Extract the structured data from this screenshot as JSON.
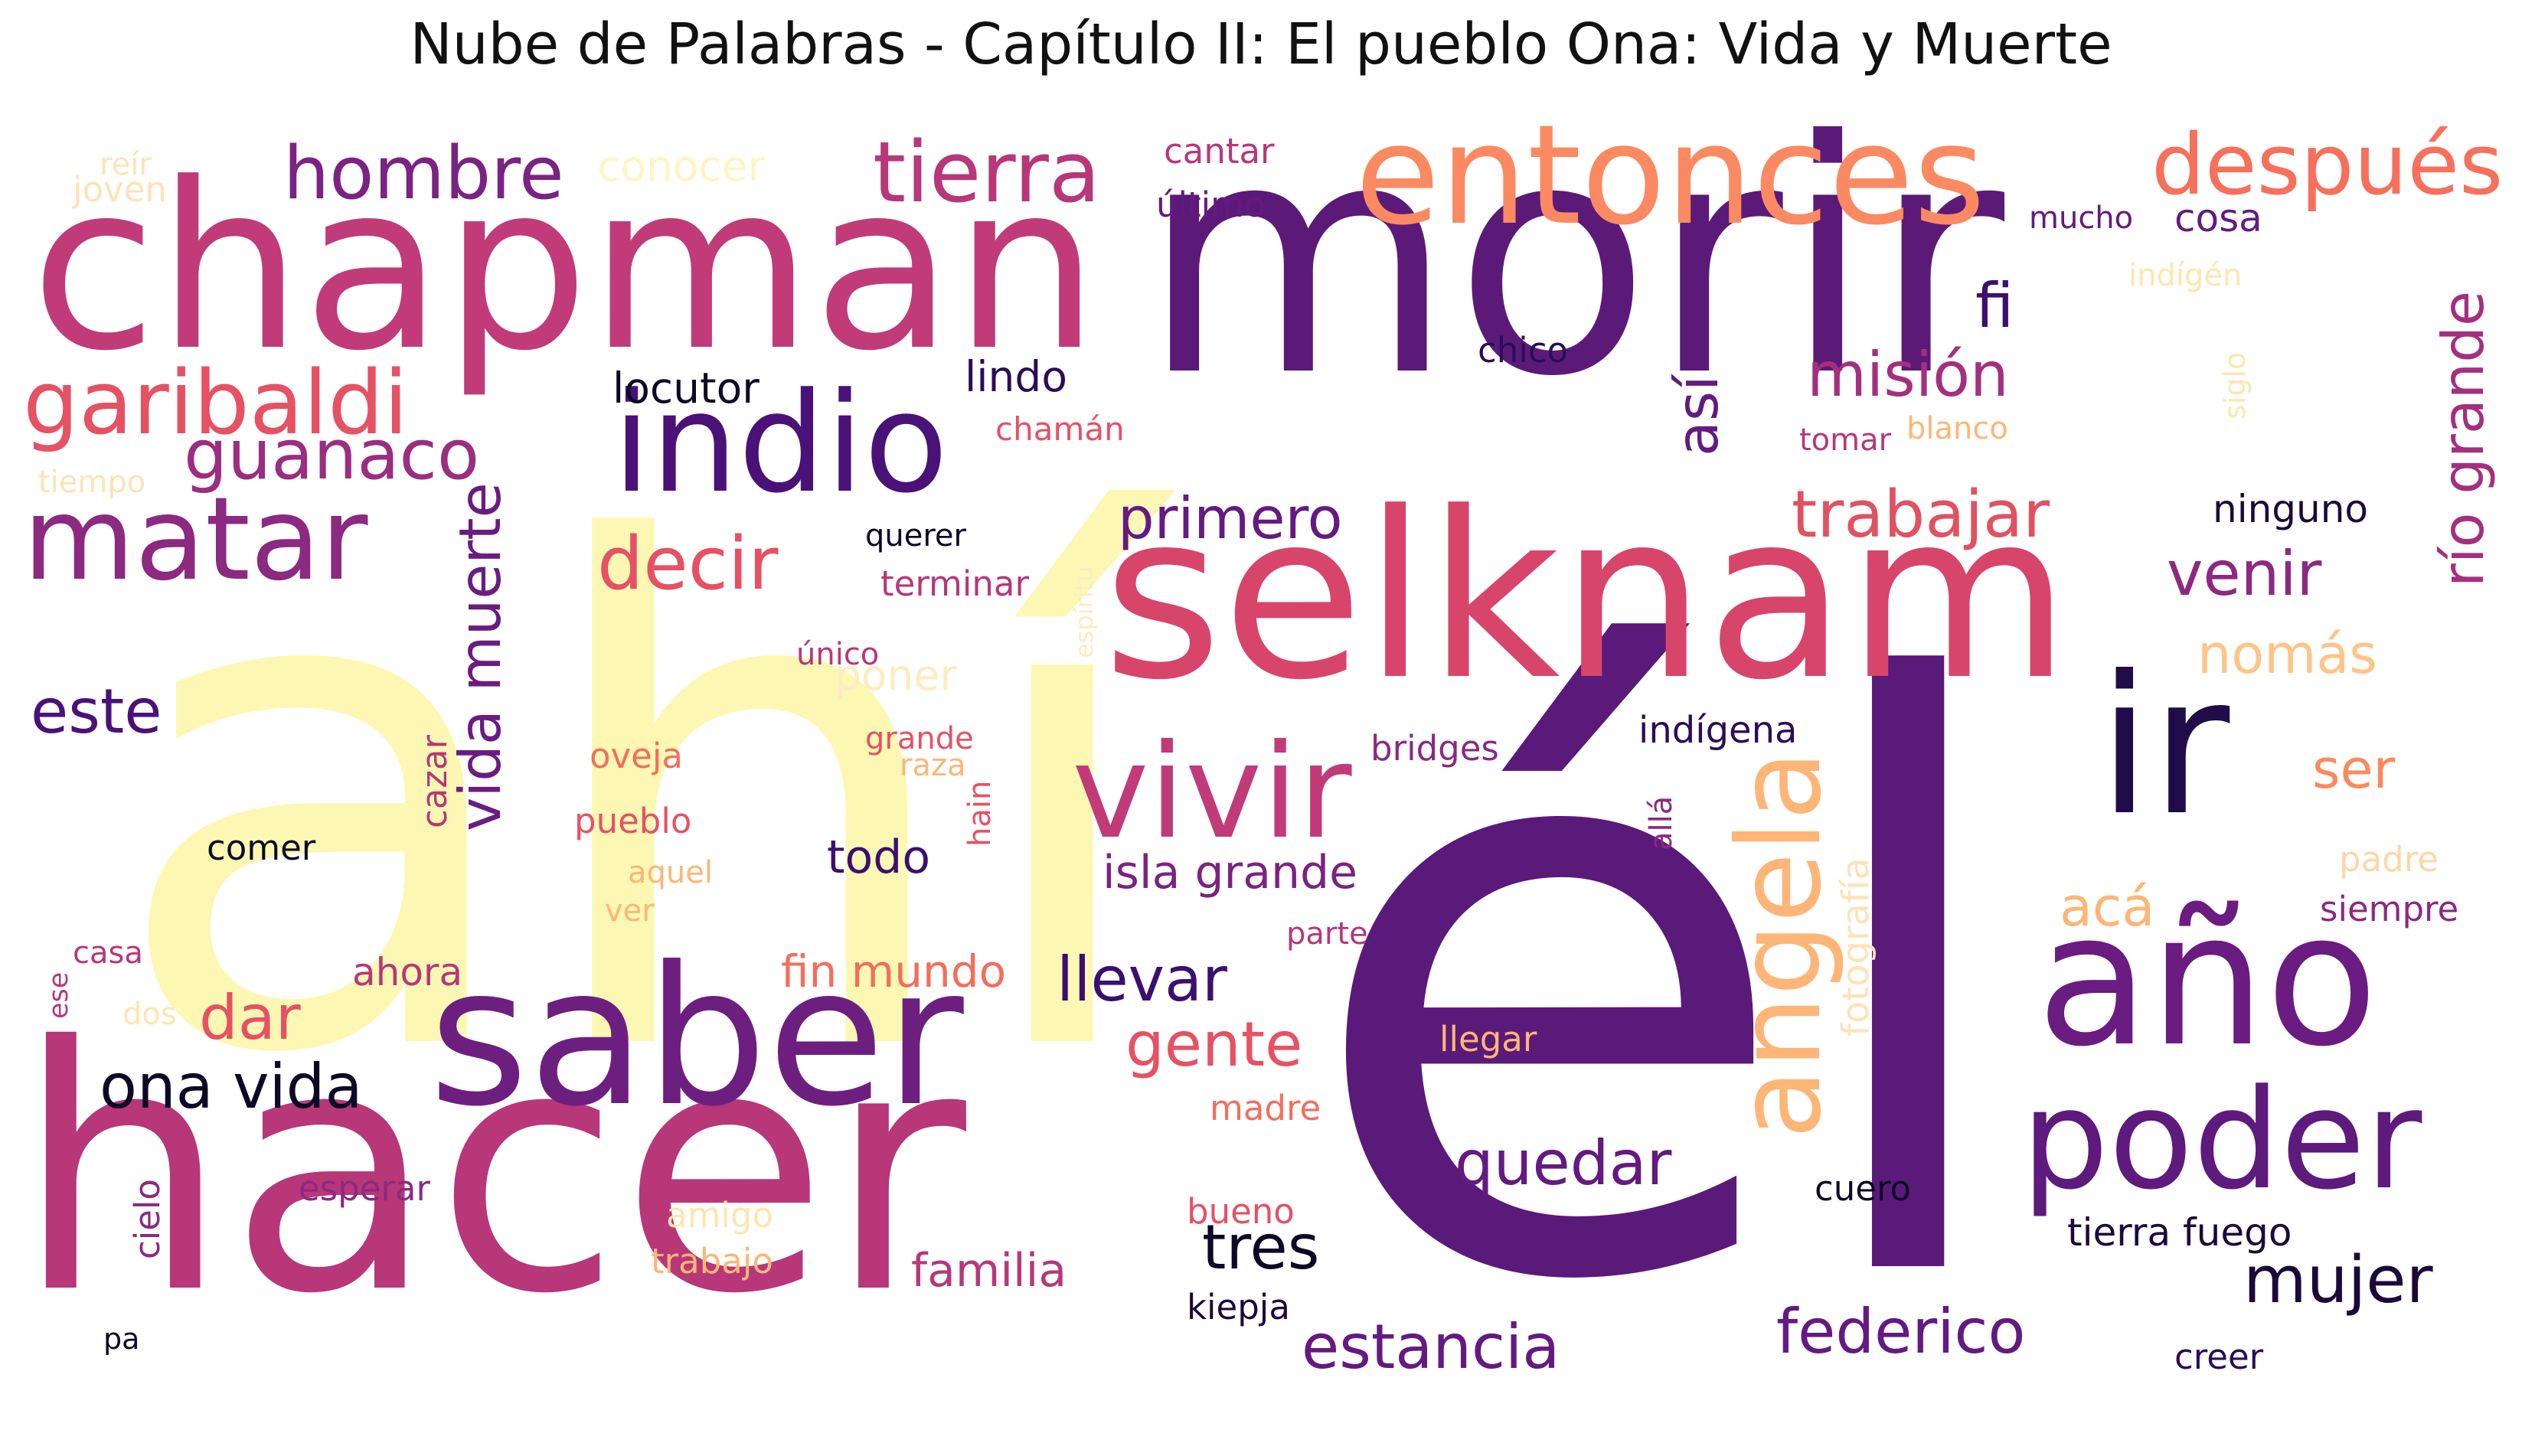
{
  "title": "Nube de Palabras - Capítulo II: El pueblo Ona: Vida y Muerte",
  "palette": [
    "#fcfdbf",
    "#fed395",
    "#fea772",
    "#f7705c",
    "#de4968",
    "#b73779",
    "#8c2981",
    "#641a80",
    "#3b0f70",
    "#000004"
  ],
  "words": [
    {
      "text": "ahí",
      "color": "#fcf8b4",
      "vertical": false
    },
    {
      "text": "él",
      "color": "#5a1a7a",
      "vertical": false
    },
    {
      "text": "morir",
      "color": "#5c1a78",
      "vertical": false
    },
    {
      "text": "hacer",
      "color": "#b73779",
      "vertical": false
    },
    {
      "text": "chapman",
      "color": "#c13b78",
      "vertical": false
    },
    {
      "text": "selknam",
      "color": "#d8456a",
      "vertical": false
    },
    {
      "text": "saber",
      "color": "#6d1f80",
      "vertical": false
    },
    {
      "text": "ir",
      "color": "#1f0c48",
      "vertical": false
    },
    {
      "text": "año",
      "color": "#6a1c81",
      "vertical": false
    },
    {
      "text": "entonces",
      "color": "#fb8a62",
      "vertical": false
    },
    {
      "text": "indio",
      "color": "#4a1278",
      "vertical": false
    },
    {
      "text": "poder",
      "color": "#5e1a7d",
      "vertical": false
    },
    {
      "text": "vivir",
      "color": "#c13b78",
      "vertical": false
    },
    {
      "text": "matar",
      "color": "#8c2981",
      "vertical": false
    },
    {
      "text": "angela",
      "color": "#fdb677",
      "vertical": true
    },
    {
      "text": "después",
      "color": "#f7705c",
      "vertical": false
    },
    {
      "text": "tierra",
      "color": "#b73779",
      "vertical": false
    },
    {
      "text": "hombre",
      "color": "#7b2382",
      "vertical": false
    },
    {
      "text": "garibaldi",
      "color": "#e65164",
      "vertical": false
    },
    {
      "text": "decir",
      "color": "#e65164",
      "vertical": false
    },
    {
      "text": "guanaco",
      "color": "#9a2e80",
      "vertical": false
    },
    {
      "text": "vida muerte",
      "color": "#6a1c81",
      "vertical": true
    },
    {
      "text": "río grande",
      "color": "#a3307e",
      "vertical": true
    },
    {
      "text": "trabajar",
      "color": "#e05262",
      "vertical": false
    },
    {
      "text": "misión",
      "color": "#a3307e",
      "vertical": false
    },
    {
      "text": "venir",
      "color": "#8c2981",
      "vertical": false
    },
    {
      "text": "primero",
      "color": "#641a80",
      "vertical": false
    },
    {
      "text": "así",
      "color": "#641a80",
      "vertical": true
    },
    {
      "text": "fi",
      "color": "#3b0f70",
      "vertical": false
    },
    {
      "text": "quedar",
      "color": "#641a80",
      "vertical": false
    },
    {
      "text": "llevar",
      "color": "#3b0f70",
      "vertical": false
    },
    {
      "text": "gente",
      "color": "#e65164",
      "vertical": false
    },
    {
      "text": "federico",
      "color": "#641a80",
      "vertical": false
    },
    {
      "text": "estancia",
      "color": "#641a80",
      "vertical": false
    },
    {
      "text": "mujer",
      "color": "#1a0a3a",
      "vertical": false
    },
    {
      "text": "ona vida",
      "color": "#0c0826",
      "vertical": false
    },
    {
      "text": "dar",
      "color": "#e65164",
      "vertical": false
    },
    {
      "text": "este",
      "color": "#4a1278",
      "vertical": false
    },
    {
      "text": "tres",
      "color": "#0c0826",
      "vertical": false
    },
    {
      "text": "familia",
      "color": "#b73779",
      "vertical": false
    },
    {
      "text": "nomás",
      "color": "#fec488",
      "vertical": false
    },
    {
      "text": "ser",
      "color": "#fa8a5e",
      "vertical": false
    },
    {
      "text": "acá",
      "color": "#fdb677",
      "vertical": false
    },
    {
      "text": "isla grande",
      "color": "#7b2382",
      "vertical": false
    },
    {
      "text": "todo",
      "color": "#3b0f70",
      "vertical": false
    },
    {
      "text": "fin mundo",
      "color": "#f36e5c",
      "vertical": false
    },
    {
      "text": "ahora",
      "color": "#b73779",
      "vertical": false
    },
    {
      "text": "cosa",
      "color": "#641a80",
      "vertical": false
    },
    {
      "text": "ninguno",
      "color": "#1a0a3a",
      "vertical": false
    },
    {
      "text": "lindo",
      "color": "#2a0c5a",
      "vertical": false
    },
    {
      "text": "locutor",
      "color": "#0c0826",
      "vertical": false
    },
    {
      "text": "conocer",
      "color": "#fdf6c4",
      "vertical": false
    },
    {
      "text": "poner",
      "color": "#fdecc0",
      "vertical": false
    },
    {
      "text": "fotografía",
      "color": "#fde3b8",
      "vertical": true
    },
    {
      "text": "cantar",
      "color": "#b73779",
      "vertical": false
    },
    {
      "text": "último",
      "color": "#641a80",
      "vertical": false
    },
    {
      "text": "mucho",
      "color": "#641a80",
      "vertical": false
    },
    {
      "text": "indígén",
      "color": "#fde6b0",
      "vertical": false
    },
    {
      "text": "chico",
      "color": "#2a0c5a",
      "vertical": false
    },
    {
      "text": "siglo",
      "color": "#fde6b0",
      "vertical": true
    },
    {
      "text": "tomar",
      "color": "#b73779",
      "vertical": false
    },
    {
      "text": "blanco",
      "color": "#fdb677",
      "vertical": false
    },
    {
      "text": "chamán",
      "color": "#e65164",
      "vertical": false
    },
    {
      "text": "querer",
      "color": "#0c0826",
      "vertical": false
    },
    {
      "text": "terminar",
      "color": "#b73779",
      "vertical": false
    },
    {
      "text": "espíritu",
      "color": "#fdebc0",
      "vertical": true
    },
    {
      "text": "único",
      "color": "#b73779",
      "vertical": false
    },
    {
      "text": "grande",
      "color": "#e65164",
      "vertical": false
    },
    {
      "text": "raza",
      "color": "#fdb677",
      "vertical": false
    },
    {
      "text": "hain",
      "color": "#e65164",
      "vertical": true
    },
    {
      "text": "oveja",
      "color": "#f36e5c",
      "vertical": false
    },
    {
      "text": "pueblo",
      "color": "#e65164",
      "vertical": false
    },
    {
      "text": "aquel",
      "color": "#fdb677",
      "vertical": false
    },
    {
      "text": "ver",
      "color": "#fdb677",
      "vertical": false
    },
    {
      "text": "cazar",
      "color": "#b73779",
      "vertical": true
    },
    {
      "text": "comer",
      "color": "#0c0826",
      "vertical": false
    },
    {
      "text": "bridges",
      "color": "#8c2981",
      "vertical": false
    },
    {
      "text": "indígena",
      "color": "#2a0c5a",
      "vertical": false
    },
    {
      "text": "allá",
      "color": "#8c2981",
      "vertical": true
    },
    {
      "text": "padre",
      "color": "#fdd7a8",
      "vertical": false
    },
    {
      "text": "siempre",
      "color": "#8c2981",
      "vertical": false
    },
    {
      "text": "parte",
      "color": "#b73779",
      "vertical": false
    },
    {
      "text": "llegar",
      "color": "#fdb677",
      "vertical": false
    },
    {
      "text": "madre",
      "color": "#f36e5c",
      "vertical": false
    },
    {
      "text": "cuero",
      "color": "#0c0826",
      "vertical": false
    },
    {
      "text": "tierra fuego",
      "color": "#1a0a3a",
      "vertical": false
    },
    {
      "text": "bueno",
      "color": "#e65164",
      "vertical": false
    },
    {
      "text": "kiepja",
      "color": "#1a0a3a",
      "vertical": false
    },
    {
      "text": "creer",
      "color": "#2a0c5a",
      "vertical": false
    },
    {
      "text": "esperar",
      "color": "#8c2981",
      "vertical": false
    },
    {
      "text": "amigo",
      "color": "#fde6b0",
      "vertical": false
    },
    {
      "text": "trabajo",
      "color": "#fdb677",
      "vertical": false
    },
    {
      "text": "cielo",
      "color": "#8c2981",
      "vertical": true
    },
    {
      "text": "pa",
      "color": "#0c0826",
      "vertical": false
    },
    {
      "text": "casa",
      "color": "#b73779",
      "vertical": false
    },
    {
      "text": "ese",
      "color": "#b73779",
      "vertical": true
    },
    {
      "text": "dos",
      "color": "#fde6b0",
      "vertical": false
    },
    {
      "text": "reír",
      "color": "#fde3b8",
      "vertical": false
    },
    {
      "text": "joven",
      "color": "#fde3b8",
      "vertical": false
    },
    {
      "text": "tiempo",
      "color": "#fde3b8",
      "vertical": false
    }
  ]
}
